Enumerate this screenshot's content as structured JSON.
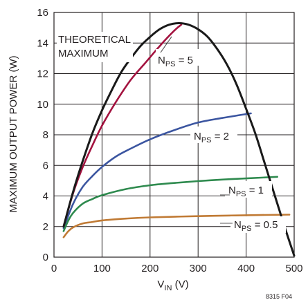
{
  "chart_data": {
    "type": "line",
    "xlabel": {
      "main": "V",
      "sub": "IN",
      "unit": " (V)"
    },
    "ylabel": "MAXIMUM OUTPUT POWER (W)",
    "xlim": [
      0,
      500
    ],
    "ylim": [
      0,
      16
    ],
    "xticks": [
      "0",
      "100",
      "200",
      "300",
      "400",
      "500"
    ],
    "yticks": [
      "0",
      "2",
      "4",
      "6",
      "8",
      "10",
      "12",
      "14",
      "16"
    ],
    "grid": true,
    "note_lines": [
      "THEORETICAL",
      "MAXIMUM"
    ],
    "figure_code": "8315 F04",
    "colors": {
      "theoretical": "#1a1a1a",
      "nps5": "#a3123f",
      "nps2": "#3b55a0",
      "nps1": "#2e8a4e",
      "nps05": "#c07a34",
      "grid": "#231f20"
    },
    "series": [
      {
        "key": "theoretical",
        "label": "",
        "x": [
          20,
          40,
          60,
          80,
          100,
          120,
          140,
          160,
          180,
          200,
          220,
          240,
          260,
          280,
          300,
          320,
          340,
          360,
          380,
          400,
          420,
          440,
          460,
          480,
          500
        ],
        "y": [
          2.0,
          4.3,
          6.3,
          8.1,
          9.6,
          10.9,
          12.1,
          13.0,
          13.8,
          14.4,
          14.9,
          15.2,
          15.3,
          15.2,
          14.9,
          14.4,
          13.6,
          12.6,
          11.3,
          9.7,
          8.0,
          6.0,
          4.0,
          2.0,
          0.1
        ]
      },
      {
        "key": "nps5",
        "label": {
          "main": "N",
          "sub": "PS",
          "tail": " = 5"
        },
        "x": [
          20,
          40,
          60,
          80,
          100,
          130,
          160,
          190,
          220,
          250,
          265
        ],
        "y": [
          2.0,
          4.2,
          5.9,
          7.3,
          8.6,
          10.2,
          11.6,
          12.7,
          13.8,
          14.8,
          15.2
        ]
      },
      {
        "key": "nps2",
        "label": {
          "main": "N",
          "sub": "PS",
          "tail": " = 2"
        },
        "x": [
          20,
          40,
          60,
          80,
          100,
          130,
          160,
          200,
          250,
          300,
          350,
          410
        ],
        "y": [
          1.9,
          3.5,
          4.6,
          5.3,
          5.9,
          6.6,
          7.1,
          7.7,
          8.3,
          8.8,
          9.1,
          9.4
        ]
      },
      {
        "key": "nps1",
        "label": {
          "main": "N",
          "sub": "PS",
          "tail": " = 1"
        },
        "x": [
          20,
          30,
          40,
          60,
          80,
          100,
          150,
          200,
          250,
          300,
          350,
          400,
          465
        ],
        "y": [
          1.7,
          2.4,
          2.9,
          3.5,
          3.8,
          4.05,
          4.45,
          4.7,
          4.85,
          4.97,
          5.07,
          5.15,
          5.25
        ]
      },
      {
        "key": "nps05",
        "label": {
          "main": "N",
          "sub": "PS",
          "tail": " = 0.5"
        },
        "x": [
          20,
          30,
          40,
          60,
          80,
          100,
          150,
          200,
          300,
          400,
          490
        ],
        "y": [
          1.3,
          1.7,
          1.95,
          2.2,
          2.3,
          2.4,
          2.52,
          2.6,
          2.68,
          2.74,
          2.78
        ]
      }
    ]
  }
}
